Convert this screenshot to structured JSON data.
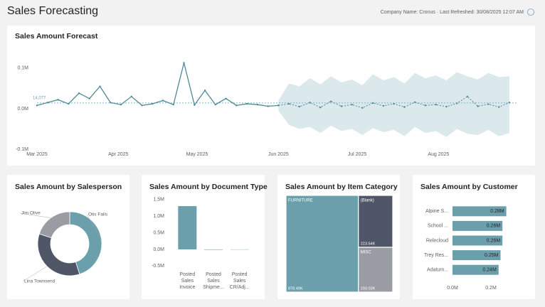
{
  "header": {
    "title": "Sales Forecasting",
    "info": "Company Name: Cronus · Last Refreshed: 30/08/2025 12:07 AM"
  },
  "chart_data": [
    {
      "type": "line",
      "title": "Sales Amount Forecast",
      "x": [
        "2025-03-01",
        "2025-03-05",
        "2025-03-09",
        "2025-03-13",
        "2025-03-17",
        "2025-03-21",
        "2025-03-25",
        "2025-03-29",
        "2025-04-02",
        "2025-04-06",
        "2025-04-10",
        "2025-04-14",
        "2025-04-18",
        "2025-04-22",
        "2025-04-26",
        "2025-04-30",
        "2025-05-04",
        "2025-05-08",
        "2025-05-12",
        "2025-05-16",
        "2025-05-20",
        "2025-05-24",
        "2025-05-28",
        "2025-06-01",
        "2025-06-05",
        "2025-06-09",
        "2025-06-13",
        "2025-06-17",
        "2025-06-21",
        "2025-06-25",
        "2025-06-29",
        "2025-07-03",
        "2025-07-07",
        "2025-07-11",
        "2025-07-15",
        "2025-07-19",
        "2025-07-23",
        "2025-07-27",
        "2025-07-31",
        "2025-08-04",
        "2025-08-08",
        "2025-08-12",
        "2025-08-16",
        "2025-08-20",
        "2025-08-24",
        "2025-08-28"
      ],
      "values": [
        8000,
        15000,
        22000,
        12000,
        38000,
        25000,
        55000,
        15000,
        10000,
        30000,
        8000,
        12000,
        20000,
        10000,
        113000,
        9000,
        45000,
        10000,
        25000,
        8000,
        12000,
        10000,
        6000,
        8000,
        null,
        null,
        null,
        null,
        null,
        null,
        null,
        null,
        null,
        null,
        null,
        null,
        null,
        null,
        null,
        null,
        null,
        null,
        null,
        null,
        null,
        null
      ],
      "forecast_values": [
        null,
        null,
        null,
        null,
        null,
        null,
        null,
        null,
        null,
        null,
        null,
        null,
        null,
        null,
        null,
        null,
        null,
        null,
        null,
        null,
        null,
        null,
        null,
        8000,
        12000,
        5000,
        15000,
        3000,
        18000,
        6000,
        10000,
        2000,
        14000,
        7000,
        12000,
        4000,
        16000,
        8000,
        10000,
        5000,
        13000,
        30000,
        6000,
        11000,
        4000,
        15000
      ],
      "forecast_upper": [
        null,
        null,
        null,
        null,
        null,
        null,
        null,
        null,
        null,
        null,
        null,
        null,
        null,
        null,
        null,
        null,
        null,
        null,
        null,
        null,
        null,
        null,
        null,
        20000,
        62000,
        55000,
        75000,
        60000,
        80000,
        65000,
        72000,
        58000,
        85000,
        70000,
        78000,
        62000,
        88000,
        75000,
        82000,
        70000,
        90000,
        80000,
        72000,
        88000,
        78000,
        80000
      ],
      "forecast_lower": [
        null,
        null,
        null,
        null,
        null,
        null,
        null,
        null,
        null,
        null,
        null,
        null,
        null,
        null,
        null,
        null,
        null,
        null,
        null,
        null,
        null,
        null,
        null,
        -5000,
        -40000,
        -50000,
        -45000,
        -60000,
        -42000,
        -55000,
        -50000,
        -65000,
        -48000,
        -58000,
        -52000,
        -68000,
        -45000,
        -60000,
        -55000,
        -70000,
        -50000,
        -62000,
        -65000,
        -52000,
        -68000,
        -60000
      ],
      "color": "#4f8a96",
      "band_color": "#dbe9ec",
      "reference": {
        "value": 14077,
        "label": "14,077"
      },
      "xlim": [
        "2025-03-01",
        "2025-08-31"
      ],
      "xticks": [
        {
          "value": "2025-03-01",
          "label": "Mar 2025"
        },
        {
          "value": "2025-04-01",
          "label": "Apr 2025"
        },
        {
          "value": "2025-05-01",
          "label": "May 2025"
        },
        {
          "value": "2025-06-01",
          "label": "Jun 2025"
        },
        {
          "value": "2025-07-01",
          "label": "Jul 2025"
        },
        {
          "value": "2025-08-01",
          "label": "Aug 2025"
        }
      ],
      "ylim": [
        -100000,
        140000
      ],
      "yticks": [
        {
          "value": 100000,
          "label": "0.1M"
        },
        {
          "value": 0,
          "label": "0.0M"
        },
        {
          "value": -100000,
          "label": "-0.1M"
        }
      ]
    },
    {
      "type": "donut",
      "title": "Sales Amount by Salesperson",
      "categories": [
        "Otis Falls",
        "Lina Townsend",
        "Jim Olive"
      ],
      "values": [
        45,
        35,
        20
      ],
      "colors": [
        "#6a9fab",
        "#4f5667",
        "#9a9ca3"
      ]
    },
    {
      "type": "bar",
      "orientation": "vertical",
      "title": "Sales Amount by Document Type",
      "categories": [
        "Posted Sales Invoice",
        "Posted Sales Shipme...",
        "Posted Sales CR/Adj..."
      ],
      "values": [
        1300000,
        0,
        -10000
      ],
      "colors": [
        "#6a9fab",
        "#6a9fab",
        "#a9cbd2"
      ],
      "ylim": [
        -600000,
        1600000
      ],
      "yticks": [
        {
          "value": 1500000,
          "label": "1.5M"
        },
        {
          "value": 1000000,
          "label": "1.0M"
        },
        {
          "value": 500000,
          "label": "0.5M"
        },
        {
          "value": 0,
          "label": "0.0M"
        },
        {
          "value": -500000,
          "label": "-0.5M"
        }
      ]
    },
    {
      "type": "treemap",
      "title": "Sales Amount by Item Category",
      "categories": [
        "FURNITURE",
        "(Blank)",
        "MISC"
      ],
      "values": [
        878490,
        223540,
        193030
      ],
      "value_labels": [
        "878.49K",
        "223.54K",
        "193.03K"
      ],
      "colors": [
        "#6a9fab",
        "#4f5667",
        "#9a9ca3"
      ]
    },
    {
      "type": "bar",
      "orientation": "horizontal",
      "title": "Sales Amount by Customer",
      "categories": [
        "Alpine S...",
        "School ...",
        "Relecloud",
        "Trey Res...",
        "Adatum..."
      ],
      "values": [
        280000,
        260000,
        260000,
        250000,
        240000
      ],
      "value_labels": [
        "0.28M",
        "0.26M",
        "0.26M",
        "0.25M",
        "0.24M"
      ],
      "color": "#6a9fab",
      "xlim": [
        0,
        300000
      ],
      "xticks": [
        {
          "value": 0,
          "label": "0.0M"
        },
        {
          "value": 200000,
          "label": "0.2M"
        }
      ]
    }
  ]
}
